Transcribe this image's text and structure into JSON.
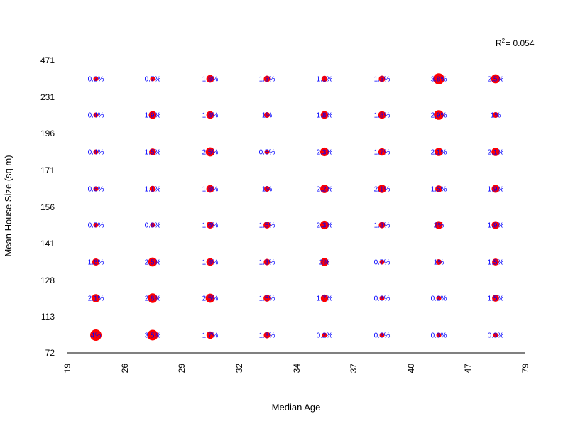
{
  "chart_data": {
    "type": "scatter",
    "xlabel": "Median Age",
    "ylabel": "Mean House Size (sq m)",
    "x_ticks": [
      "19",
      "26",
      "29",
      "32",
      "34",
      "37",
      "40",
      "47",
      "79"
    ],
    "y_ticks": [
      "72",
      "113",
      "128",
      "141",
      "156",
      "171",
      "196",
      "231",
      "471"
    ],
    "r_squared": {
      "label": "R",
      "superscript": "2",
      "value": "= 0.054"
    },
    "colors": {
      "bubble": "#ff0000",
      "label": "#0000ff",
      "axis": "#000000"
    },
    "grid": false,
    "cells": [
      [
        "4%",
        "3.5%",
        "1.7%",
        "1.3%",
        "0.2%",
        "0.3%",
        "0.3%",
        "0.3%"
      ],
      [
        "2.1%",
        "2.8%",
        "2.5%",
        "1.5%",
        "1.7%",
        "0.3%",
        "0.2%",
        "1.5%"
      ],
      [
        "1.6%",
        "2.5%",
        "1.8%",
        "1.3%",
        "2%",
        "0.7%",
        "1%",
        "1.5%"
      ],
      [
        "0.7%",
        "0.8%",
        "1.6%",
        "1.5%",
        "2.3%",
        "1.3%",
        "2%",
        "1.9%"
      ],
      [
        "0.6%",
        "1.1%",
        "1.8%",
        "1%",
        "2.2%",
        "2.1%",
        "1.5%",
        "1.9%"
      ],
      [
        "0.4%",
        "1.5%",
        "2.5%",
        "0.5%",
        "2.3%",
        "1.7%",
        "2.1%",
        "2.1%"
      ],
      [
        "0.4%",
        "1.9%",
        "1.8%",
        "1%",
        "1.8%",
        "1.8%",
        "2.9%",
        "1%"
      ],
      [
        "0.2%",
        "0.7%",
        "1.8%",
        "1.3%",
        "1.1%",
        "1.3%",
        "3.8%",
        "2.5%"
      ]
    ]
  }
}
